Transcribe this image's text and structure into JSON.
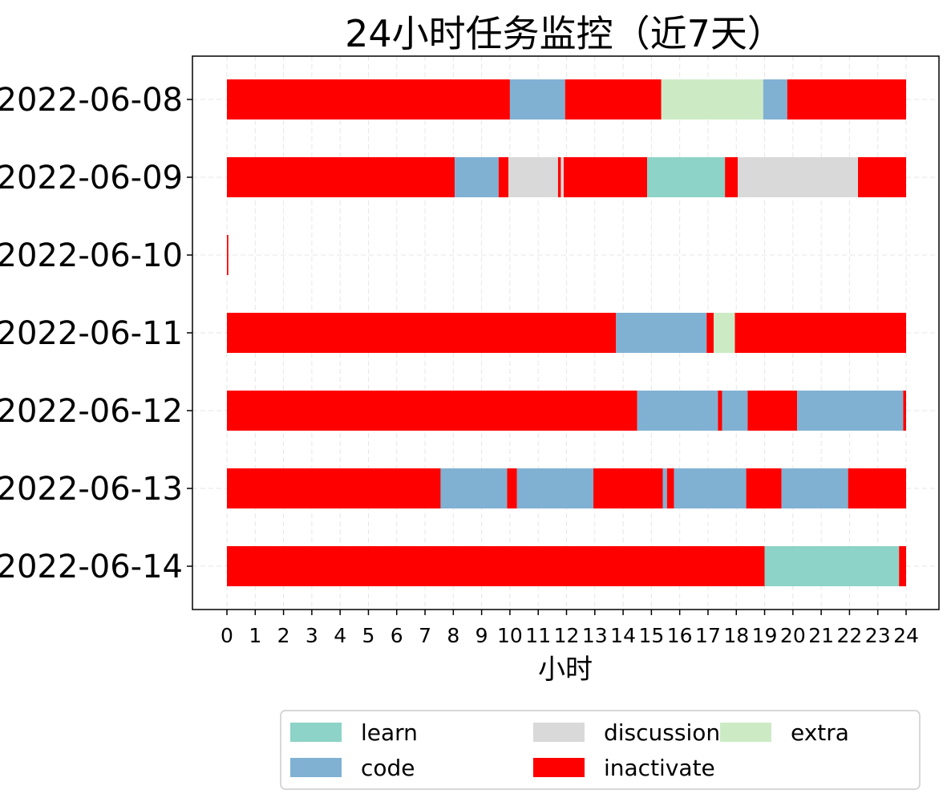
{
  "chart_data": {
    "type": "bar",
    "orientation": "horizontal-stacked-timeline",
    "title": "24小时任务监控（近7天）",
    "xlabel": "小时",
    "ylabel": "",
    "xlim": [
      0,
      24
    ],
    "x_ticks": [
      "0",
      "1",
      "2",
      "3",
      "4",
      "5",
      "6",
      "7",
      "8",
      "9",
      "10",
      "11",
      "12",
      "13",
      "14",
      "15",
      "16",
      "17",
      "18",
      "19",
      "20",
      "21",
      "22",
      "23",
      "24"
    ],
    "grid": true,
    "legend_position": "bottom",
    "categories": [
      "2022-06-08",
      "2022-06-09",
      "2022-06-10",
      "2022-06-11",
      "2022-06-12",
      "2022-06-13",
      "2022-06-14"
    ],
    "legend": [
      {
        "name": "learn",
        "color": "#8dd3c7"
      },
      {
        "name": "code",
        "color": "#80b1d3"
      },
      {
        "name": "discussion",
        "color": "#d9d9d9"
      },
      {
        "name": "inactivate",
        "color": "#ff0000"
      },
      {
        "name": "extra",
        "color": "#ccebc5"
      }
    ],
    "segments": [
      [
        {
          "type": "inactivate",
          "start": 0,
          "end": 10.0
        },
        {
          "type": "code",
          "start": 10.0,
          "end": 11.95
        },
        {
          "type": "inactivate",
          "start": 11.95,
          "end": 15.35
        },
        {
          "type": "extra",
          "start": 15.35,
          "end": 18.95
        },
        {
          "type": "code",
          "start": 18.95,
          "end": 19.8
        },
        {
          "type": "inactivate",
          "start": 19.8,
          "end": 24
        }
      ],
      [
        {
          "type": "inactivate",
          "start": 0,
          "end": 8.05
        },
        {
          "type": "code",
          "start": 8.05,
          "end": 9.6
        },
        {
          "type": "inactivate",
          "start": 9.6,
          "end": 9.95
        },
        {
          "type": "discussion",
          "start": 9.95,
          "end": 11.7
        },
        {
          "type": "inactivate",
          "start": 11.7,
          "end": 11.8
        },
        {
          "type": "discussion",
          "start": 11.8,
          "end": 11.9
        },
        {
          "type": "inactivate",
          "start": 11.9,
          "end": 14.85
        },
        {
          "type": "learn",
          "start": 14.85,
          "end": 17.6
        },
        {
          "type": "inactivate",
          "start": 17.6,
          "end": 18.05
        },
        {
          "type": "discussion",
          "start": 18.05,
          "end": 22.3
        },
        {
          "type": "inactivate",
          "start": 22.3,
          "end": 24
        }
      ],
      [
        {
          "type": "inactivate",
          "start": 0,
          "end": 0.05
        }
      ],
      [
        {
          "type": "inactivate",
          "start": 0,
          "end": 13.75
        },
        {
          "type": "code",
          "start": 13.75,
          "end": 16.95
        },
        {
          "type": "inactivate",
          "start": 16.95,
          "end": 17.2
        },
        {
          "type": "extra",
          "start": 17.2,
          "end": 17.95
        },
        {
          "type": "inactivate",
          "start": 17.95,
          "end": 24
        }
      ],
      [
        {
          "type": "inactivate",
          "start": 0,
          "end": 14.5
        },
        {
          "type": "code",
          "start": 14.5,
          "end": 17.35
        },
        {
          "type": "inactivate",
          "start": 17.35,
          "end": 17.5
        },
        {
          "type": "code",
          "start": 17.5,
          "end": 18.4
        },
        {
          "type": "inactivate",
          "start": 18.4,
          "end": 20.15
        },
        {
          "type": "code",
          "start": 20.15,
          "end": 23.9
        },
        {
          "type": "inactivate",
          "start": 23.9,
          "end": 24
        }
      ],
      [
        {
          "type": "inactivate",
          "start": 0,
          "end": 7.55
        },
        {
          "type": "code",
          "start": 7.55,
          "end": 9.9
        },
        {
          "type": "inactivate",
          "start": 9.9,
          "end": 10.25
        },
        {
          "type": "code",
          "start": 10.25,
          "end": 12.95
        },
        {
          "type": "inactivate",
          "start": 12.95,
          "end": 15.4
        },
        {
          "type": "code",
          "start": 15.4,
          "end": 15.55
        },
        {
          "type": "inactivate",
          "start": 15.55,
          "end": 15.8
        },
        {
          "type": "code",
          "start": 15.8,
          "end": 18.35
        },
        {
          "type": "inactivate",
          "start": 18.35,
          "end": 19.6
        },
        {
          "type": "code",
          "start": 19.6,
          "end": 21.95
        },
        {
          "type": "inactivate",
          "start": 21.95,
          "end": 24
        }
      ],
      [
        {
          "type": "inactivate",
          "start": 0,
          "end": 19.0
        },
        {
          "type": "learn",
          "start": 19.0,
          "end": 23.75
        },
        {
          "type": "inactivate",
          "start": 23.75,
          "end": 24
        }
      ]
    ]
  }
}
